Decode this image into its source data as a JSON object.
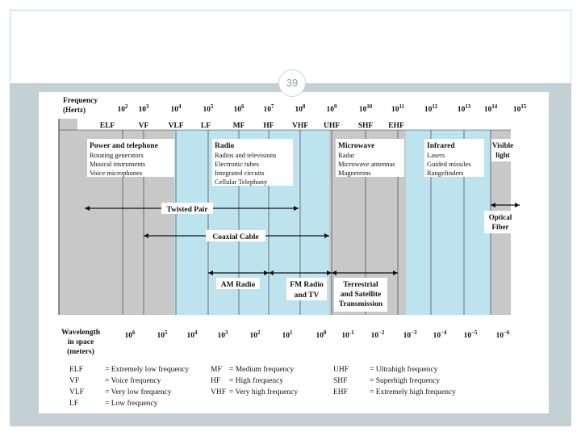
{
  "slide": {
    "page_number": "39"
  },
  "colors": {
    "gray": "#c8c8c8",
    "blue": "#bde3ef",
    "band": "#c3d0d4",
    "ink": "#111111"
  },
  "axis": {
    "frequency_label": [
      "Frequency",
      "(Hertz)"
    ],
    "wavelength_label": [
      "Wavelength",
      "in space",
      "(meters)"
    ],
    "freq_ticks": [
      {
        "b": "10",
        "e": "2"
      },
      {
        "b": "10",
        "e": "3"
      },
      {
        "b": "10",
        "e": "4"
      },
      {
        "b": "10",
        "e": "5"
      },
      {
        "b": "10",
        "e": "6"
      },
      {
        "b": "10",
        "e": "7"
      },
      {
        "b": "10",
        "e": "8"
      },
      {
        "b": "10",
        "e": "9"
      },
      {
        "b": "10",
        "e": "10"
      },
      {
        "b": "10",
        "e": "11"
      },
      {
        "b": "10",
        "e": "12"
      },
      {
        "b": "10",
        "e": "13"
      },
      {
        "b": "10",
        "e": "14"
      },
      {
        "b": "10",
        "e": "15"
      }
    ],
    "wave_ticks": [
      {
        "b": "10",
        "e": "6"
      },
      {
        "b": "10",
        "e": "5"
      },
      {
        "b": "10",
        "e": "4"
      },
      {
        "b": "10",
        "e": "3"
      },
      {
        "b": "10",
        "e": "2"
      },
      {
        "b": "10",
        "e": "1"
      },
      {
        "b": "10",
        "e": "0"
      },
      {
        "b": "10",
        "e": "-1"
      },
      {
        "b": "10",
        "e": "−2"
      },
      {
        "b": "10",
        "e": "−3"
      },
      {
        "b": "10",
        "e": "−4"
      },
      {
        "b": "10",
        "e": "−5"
      },
      {
        "b": "10",
        "e": "−6"
      }
    ]
  },
  "bands": [
    "ELF",
    "VF",
    "VLF",
    "LF",
    "MF",
    "HF",
    "VHF",
    "UHF",
    "SHF",
    "EHF"
  ],
  "regions": [
    {
      "title": "Power and telephone",
      "items": [
        "Rotating generators",
        "Musical instruments",
        "Voice microphones"
      ]
    },
    {
      "title": "Radio",
      "items": [
        "Radios and televisions",
        "Electronic tubes",
        "Integrated circuits",
        "Cellular Telephony"
      ]
    },
    {
      "title": "Microwave",
      "items": [
        "Radar",
        "Microwave antennas",
        "Magnetrons"
      ]
    },
    {
      "title": "Infrared",
      "items": [
        "Lasers",
        "Guided missiles",
        "Rangefinders"
      ]
    },
    {
      "title": "Visible light",
      "lines": [
        "Visible",
        "light"
      ]
    }
  ],
  "media": {
    "twisted_pair": "Twisted Pair",
    "coaxial_cable": "Coaxial Cable",
    "am_radio": "AM Radio",
    "fm_radio": [
      "FM Radio",
      "and TV"
    ],
    "terrestrial": [
      "Terrestrial",
      "and Satellite",
      "Transmission"
    ],
    "optical_fiber": [
      "Optical",
      "Fiber"
    ]
  },
  "legend": [
    [
      "ELF",
      "= Extremely low frequency"
    ],
    [
      "VF",
      "= Voice frequency"
    ],
    [
      "VLF",
      "= Very low frequency"
    ],
    [
      "LF",
      "= Low frequency"
    ],
    [
      "MF",
      "= Medium frequency"
    ],
    [
      "HF",
      "= High frequency"
    ],
    [
      "VHF",
      "= Very high frequency"
    ],
    [
      "UHF",
      "= Ultrahigh frequency"
    ],
    [
      "SHF",
      "= Superhigh frequency"
    ],
    [
      "EHF",
      "= Extremely high frequency"
    ]
  ]
}
